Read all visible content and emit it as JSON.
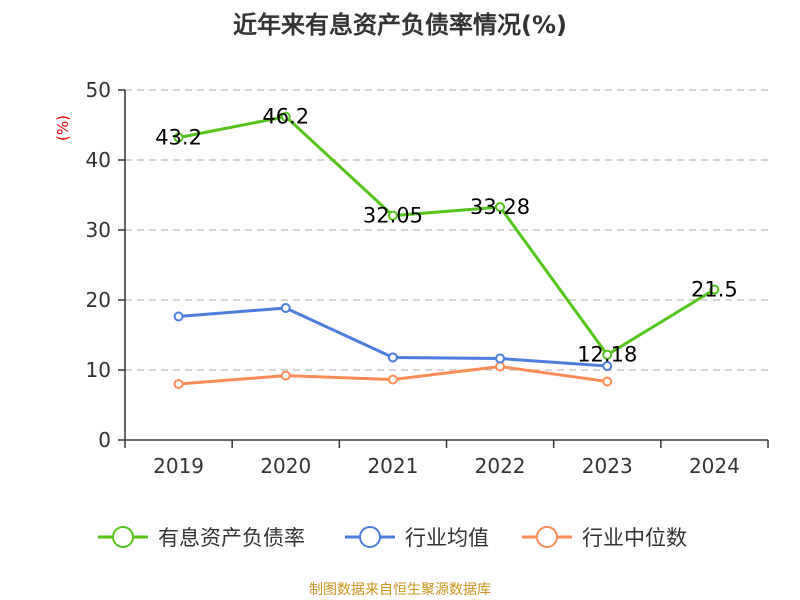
{
  "chart_data": {
    "type": "line",
    "title": "近年来有息资产负债率情况(%)",
    "ylabel": "(%)",
    "xlabel": "",
    "categories": [
      "2019",
      "2020",
      "2021",
      "2022",
      "2023",
      "2024"
    ],
    "ylim": [
      0,
      50
    ],
    "yticks": [
      0,
      10,
      20,
      30,
      40,
      50
    ],
    "grid": true,
    "legend_position": "bottom",
    "series": [
      {
        "name": "有息资产负债率",
        "color": "#52c41a",
        "values": [
          43.2,
          46.2,
          32.05,
          33.28,
          12.18,
          21.5
        ],
        "labels": [
          "43.2",
          "46.2",
          "32.05",
          "33.28",
          "12.18",
          "21.5"
        ]
      },
      {
        "name": "行业均值",
        "color": "#4a7fe0",
        "values": [
          17.64,
          18.86,
          11.79,
          11.64,
          10.57,
          null
        ]
      },
      {
        "name": "行业中位数",
        "color": "#ff8c55",
        "values": [
          8.0,
          9.2,
          8.64,
          10.5,
          8.36,
          null
        ]
      }
    ],
    "source": "制图数据来自恒生聚源数据库"
  }
}
